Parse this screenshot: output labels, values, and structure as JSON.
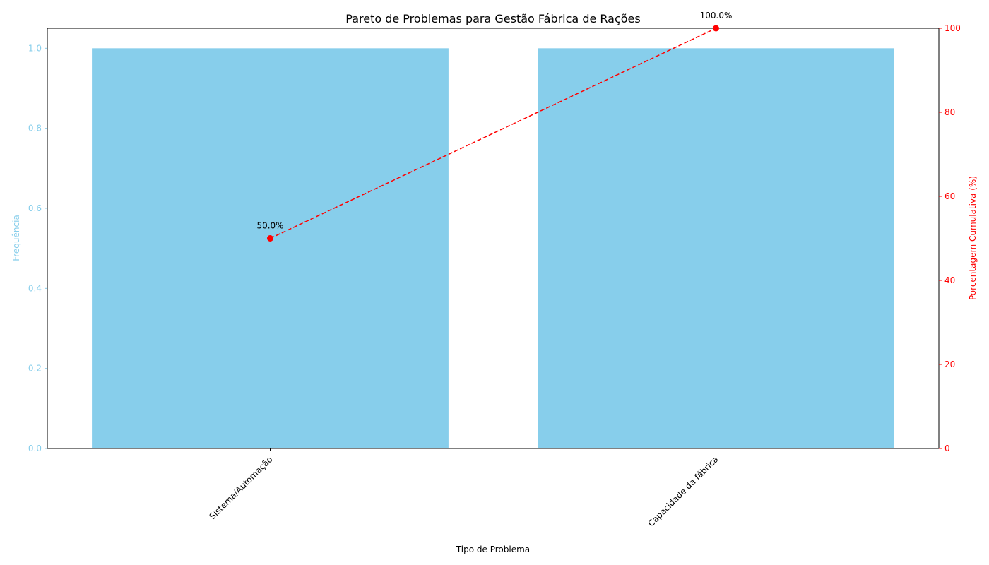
{
  "chart_data": {
    "type": "bar",
    "title": "Pareto de Problemas para Gestão Fábrica de Rações",
    "xlabel": "Tipo de Problema",
    "ylabel": "Frequência",
    "y2label": "Porcentagem Cumulativa (%)",
    "categories": [
      "Sistema/Automação",
      "Capacidade da fábrica"
    ],
    "values": [
      1,
      1
    ],
    "cumulative_percent": [
      50.0,
      100.0
    ],
    "cumulative_labels": [
      "50.0%",
      "100.0%"
    ],
    "ylim": [
      0,
      1.05
    ],
    "y_ticks": [
      0.0,
      0.2,
      0.4,
      0.6,
      0.8,
      1.0
    ],
    "y_tick_labels": [
      "0.0",
      "0.2",
      "0.4",
      "0.6",
      "0.8",
      "1.0"
    ],
    "y2lim": [
      0,
      100
    ],
    "y2_ticks": [
      0,
      20,
      40,
      60,
      80,
      100
    ],
    "y2_tick_labels": [
      "0",
      "20",
      "40",
      "60",
      "80",
      "100"
    ],
    "grid": false,
    "colors": {
      "bars": "#87CEEB",
      "line": "#ff0000",
      "axis": "#000000"
    }
  }
}
